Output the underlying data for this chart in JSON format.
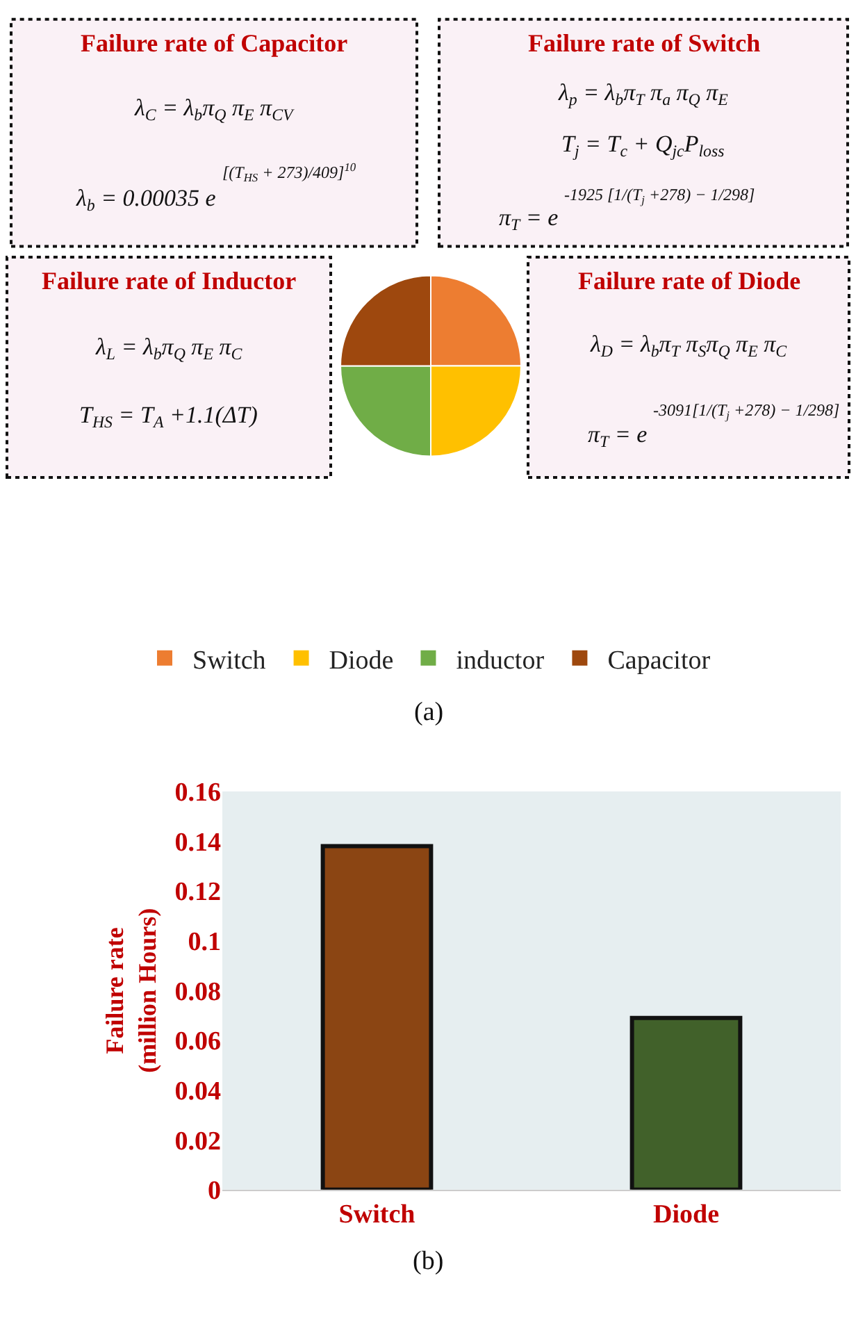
{
  "chart_data": [
    {
      "type": "pie",
      "categories": [
        "Switch",
        "Diode",
        "inductor",
        "Capacitor"
      ],
      "values": [
        25,
        25,
        25,
        25
      ],
      "colors": [
        "#ed7d31",
        "#ffc000",
        "#70ad47",
        "#9e480e"
      ],
      "legend": "bottom",
      "annotations": [
        "Failure rate of Capacitor",
        "λ$_{C}$ = λ$_{b}$π$_{Q}$ π$_{E}$ π$_{CV}$",
        "λ$_{b}$ = 0.00035 e",
        "[(T$_{HS}$ + 273)/409]$^{10}$",
        "Failure rate of Switch",
        "λ$_{p}$ = λ$_{b}$π$_{T}$ π$_{a}$ π$_{Q}$ π$_{E}$",
        "T$_{j}$ = T$_{c}$ + Q$_{jc}$P$_{loss}$",
        "π$_{T}$ = e",
        "-1925 [1/(T$_{j}$ +278) − 1/298]",
        "Failure rate of Inductor",
        "λ$_{L}$ = λ$_{b}$π$_{Q}$ π$_{E}$ π$_{C}$",
        "T$_{HS}$ = T$_{A}$ +1.1(ΔT)",
        "Failure rate of Diode",
        "λ$_{D}$ = λ$_{b}$π$_{T}$ π$_{S}$π$_{Q}$ π$_{E}$ π$_{C}$",
        "π$_{T}$ = e",
        "-3091[1/(T$_{j}$ +278) − 1/298]",
        "(a)"
      ]
    },
    {
      "type": "bar",
      "categories": [
        "Switch",
        "Diode"
      ],
      "values": [
        0.138,
        0.069
      ],
      "colors": [
        "#8b4513",
        "#41612a"
      ],
      "ylabel": "Failure rate\n(million Hours)",
      "ylim": [
        0,
        0.16
      ],
      "yticks": [
        0,
        0.02,
        0.04,
        0.06,
        0.08,
        0.1,
        0.12,
        0.14,
        0.16
      ],
      "grid": false,
      "legend": false,
      "annotations": [
        "(b)"
      ]
    }
  ]
}
